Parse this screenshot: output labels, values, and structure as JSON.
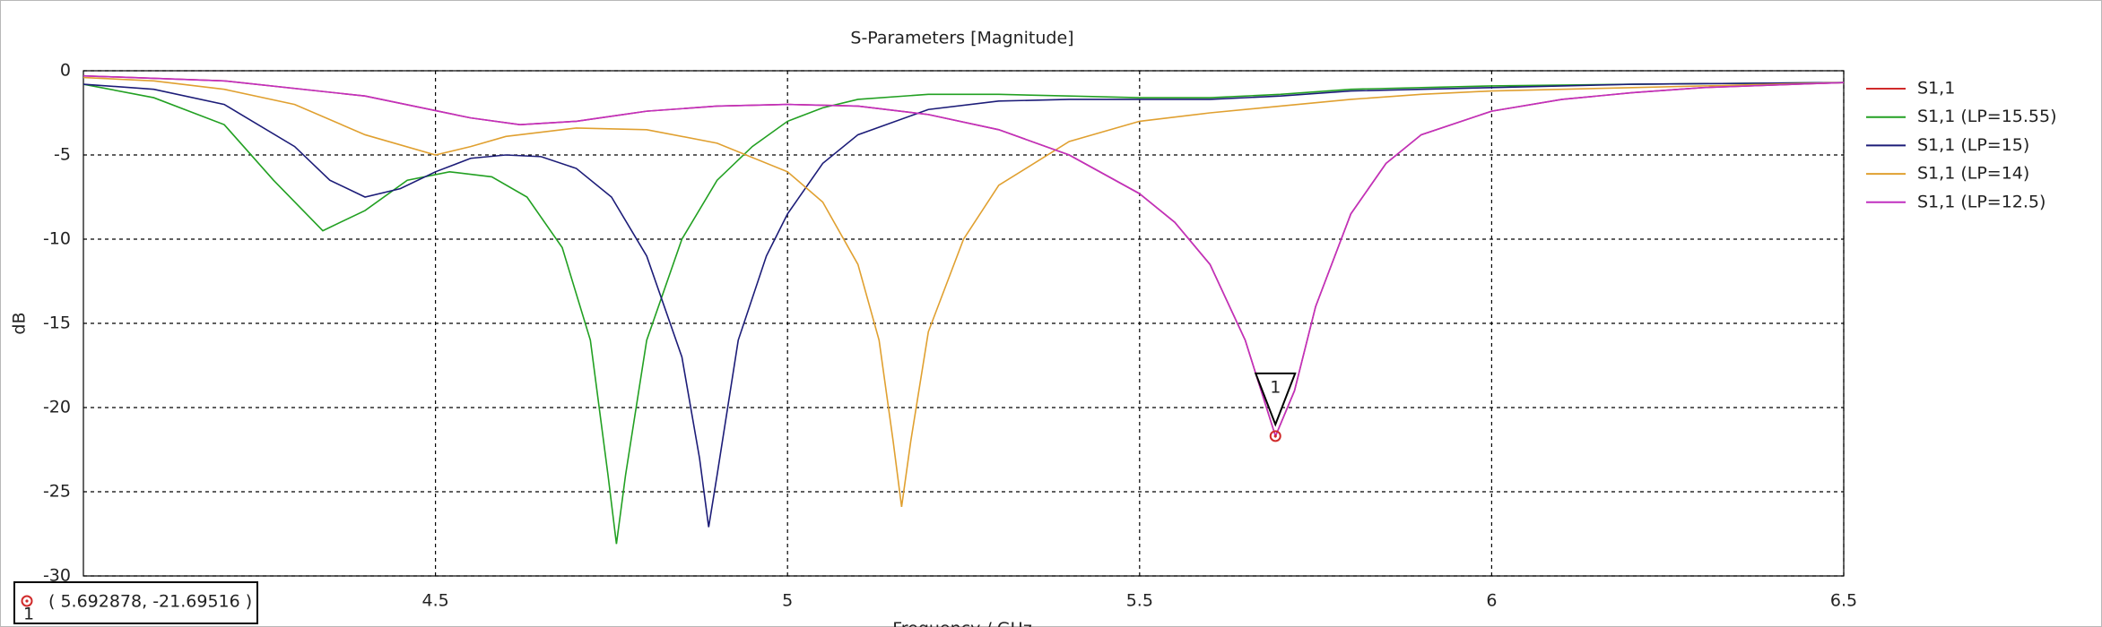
{
  "chart_data": {
    "type": "line",
    "title": "S-Parameters [Magnitude]",
    "x_label": "Frequency / GHz",
    "y_label": "dB",
    "xlim": [
      4,
      6.5
    ],
    "ylim": [
      -30,
      0
    ],
    "xticks": [
      4.5,
      5,
      5.5,
      6,
      6.5
    ],
    "yticks": [
      0,
      -5,
      -10,
      -15,
      -20,
      -25,
      -30
    ],
    "grid": true,
    "legend": "right",
    "series": [
      {
        "name": "S1,1",
        "color": "#d02a2a",
        "x": [
          4.0,
          4.2,
          4.4,
          4.55,
          4.62,
          4.7,
          4.8,
          4.9,
          5.0,
          5.1,
          5.2,
          5.3,
          5.4,
          5.5,
          5.55,
          5.6,
          5.65,
          5.693,
          5.72,
          5.75,
          5.8,
          5.85,
          5.9,
          6.0,
          6.1,
          6.2,
          6.3,
          6.5
        ],
        "values": [
          -0.3,
          -0.6,
          -1.5,
          -2.8,
          -3.2,
          -3.0,
          -2.4,
          -2.1,
          -2.0,
          -2.1,
          -2.6,
          -3.5,
          -5.0,
          -7.3,
          -9.0,
          -11.5,
          -16,
          -21.7,
          -19,
          -14,
          -8.5,
          -5.5,
          -3.8,
          -2.4,
          -1.7,
          -1.3,
          -1.0,
          -0.7
        ]
      },
      {
        "name": "S1,1 (LP=15.55)",
        "color": "#22a022",
        "x": [
          4.0,
          4.1,
          4.2,
          4.27,
          4.34,
          4.4,
          4.46,
          4.52,
          4.58,
          4.63,
          4.68,
          4.72,
          4.745,
          4.757,
          4.77,
          4.8,
          4.85,
          4.9,
          4.95,
          5.0,
          5.05,
          5.1,
          5.2,
          5.3,
          5.4,
          5.5,
          5.6,
          5.7,
          5.8,
          6.0,
          6.2,
          6.5
        ],
        "values": [
          -0.8,
          -1.6,
          -3.2,
          -6.5,
          -9.5,
          -8.3,
          -6.5,
          -6.0,
          -6.3,
          -7.5,
          -10.5,
          -16,
          -24,
          -28.1,
          -24,
          -16,
          -10,
          -6.5,
          -4.5,
          -3.0,
          -2.2,
          -1.7,
          -1.4,
          -1.4,
          -1.5,
          -1.6,
          -1.6,
          -1.4,
          -1.1,
          -0.9,
          -0.8,
          -0.7
        ]
      },
      {
        "name": "S1,1 (LP=15)",
        "color": "#1c1c78",
        "x": [
          4.0,
          4.1,
          4.2,
          4.3,
          4.35,
          4.4,
          4.45,
          4.5,
          4.55,
          4.6,
          4.65,
          4.7,
          4.75,
          4.8,
          4.85,
          4.875,
          4.888,
          4.9,
          4.93,
          4.97,
          5.0,
          5.05,
          5.1,
          5.2,
          5.3,
          5.4,
          5.5,
          5.6,
          5.7,
          5.8,
          6.0,
          6.2,
          6.5
        ],
        "values": [
          -0.8,
          -1.1,
          -2.0,
          -4.5,
          -6.5,
          -7.5,
          -7.0,
          -6.0,
          -5.2,
          -5.0,
          -5.1,
          -5.8,
          -7.5,
          -11,
          -17,
          -23,
          -27.1,
          -24,
          -16,
          -11,
          -8.5,
          -5.5,
          -3.8,
          -2.3,
          -1.8,
          -1.7,
          -1.7,
          -1.7,
          -1.5,
          -1.2,
          -1.0,
          -0.8,
          -0.7
        ]
      },
      {
        "name": "S1,1 (LP=14)",
        "color": "#e0a030",
        "x": [
          4.0,
          4.1,
          4.2,
          4.3,
          4.4,
          4.5,
          4.55,
          4.6,
          4.7,
          4.8,
          4.9,
          5.0,
          5.05,
          5.1,
          5.13,
          5.15,
          5.162,
          5.175,
          5.2,
          5.25,
          5.3,
          5.4,
          5.5,
          5.6,
          5.7,
          5.8,
          5.9,
          6.0,
          6.2,
          6.5
        ],
        "values": [
          -0.4,
          -0.6,
          -1.1,
          -2.0,
          -3.8,
          -5.0,
          -4.5,
          -3.9,
          -3.4,
          -3.5,
          -4.3,
          -6.0,
          -7.8,
          -11.5,
          -16,
          -22,
          -25.9,
          -22,
          -15.5,
          -10,
          -6.8,
          -4.2,
          -3.0,
          -2.5,
          -2.1,
          -1.7,
          -1.4,
          -1.2,
          -1.0,
          -0.7
        ]
      },
      {
        "name": "S1,1 (LP=12.5)",
        "color": "#c030c0",
        "x": [
          4.0,
          4.2,
          4.4,
          4.55,
          4.62,
          4.7,
          4.8,
          4.9,
          5.0,
          5.1,
          5.2,
          5.3,
          5.4,
          5.5,
          5.55,
          5.6,
          5.65,
          5.693,
          5.72,
          5.75,
          5.8,
          5.85,
          5.9,
          6.0,
          6.1,
          6.2,
          6.3,
          6.5
        ],
        "values": [
          -0.3,
          -0.6,
          -1.5,
          -2.8,
          -3.2,
          -3.0,
          -2.4,
          -2.1,
          -2.0,
          -2.1,
          -2.6,
          -3.5,
          -5.0,
          -7.3,
          -9.0,
          -11.5,
          -16,
          -21.7,
          -19,
          -14,
          -8.5,
          -5.5,
          -3.8,
          -2.4,
          -1.7,
          -1.3,
          -1.0,
          -0.7
        ]
      }
    ],
    "markers": [
      {
        "label": "1",
        "x": 5.692878,
        "y": -21.69516,
        "readout": "( 5.692878, -21.69516 )",
        "color": "#d02a2a"
      }
    ]
  }
}
